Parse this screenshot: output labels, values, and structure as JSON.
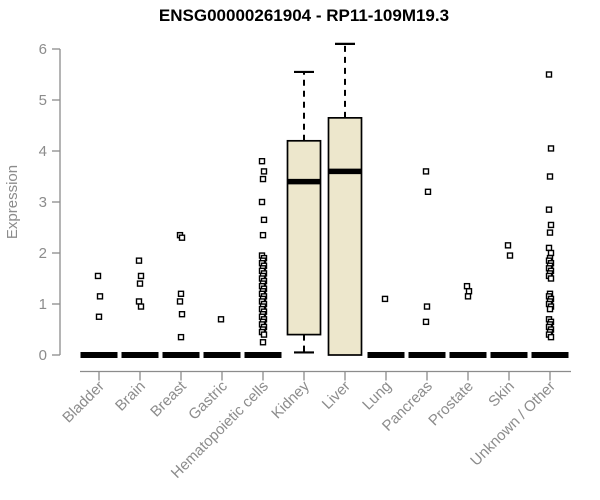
{
  "colors": {
    "background": "#FFFFFF",
    "box_fill": "#EDE7CC",
    "box_stroke": "#000000",
    "median": "#000000",
    "whisker": "#000000",
    "outlier_stroke": "#000000",
    "outlier_fill": "#FFFFFF",
    "axis": "#8C8C8C",
    "text": "#8C8C8C",
    "title": "#000000"
  },
  "chart_data": {
    "type": "boxplot",
    "title": "ENSG00000261904 - RP11-109M19.3",
    "ylabel": "Expression",
    "xlabel": "",
    "ylim": [
      0,
      6
    ],
    "yticks": [
      0,
      1,
      2,
      3,
      4,
      5,
      6
    ],
    "grid": false,
    "legend": null,
    "categories": [
      "Bladder",
      "Brain",
      "Breast",
      "Gastric",
      "Hematopoietic cells",
      "Kidney",
      "Liver",
      "Lung",
      "Pancreas",
      "Prostate",
      "Skin",
      "Unknown / Other"
    ],
    "boxes": [
      {
        "category": "Bladder",
        "q1": 0,
        "median": 0,
        "q3": 0,
        "whisker_low": 0,
        "whisker_high": 0,
        "outliers": [
          1.55,
          1.15,
          0.75
        ]
      },
      {
        "category": "Brain",
        "q1": 0,
        "median": 0,
        "q3": 0,
        "whisker_low": 0,
        "whisker_high": 0,
        "outliers": [
          1.85,
          1.55,
          1.4,
          1.05,
          0.95
        ]
      },
      {
        "category": "Breast",
        "q1": 0,
        "median": 0,
        "q3": 0,
        "whisker_low": 0,
        "whisker_high": 0,
        "outliers": [
          2.35,
          2.3,
          1.2,
          1.05,
          0.8,
          0.35
        ]
      },
      {
        "category": "Gastric",
        "q1": 0,
        "median": 0,
        "q3": 0,
        "whisker_low": 0,
        "whisker_high": 0,
        "outliers": [
          0.7
        ]
      },
      {
        "category": "Hematopoietic cells",
        "q1": 0,
        "median": 0,
        "q3": 0,
        "whisker_low": 0,
        "whisker_high": 0,
        "outliers": [
          3.8,
          3.6,
          3.45,
          3.0,
          2.65,
          2.35,
          1.95,
          1.9,
          1.85,
          1.8,
          1.75,
          1.7,
          1.65,
          1.6,
          1.55,
          1.5,
          1.45,
          1.4,
          1.35,
          1.3,
          1.25,
          1.2,
          1.15,
          1.1,
          1.05,
          1.0,
          0.95,
          0.9,
          0.85,
          0.8,
          0.75,
          0.7,
          0.65,
          0.6,
          0.55,
          0.5,
          0.45,
          0.4,
          0.25
        ]
      },
      {
        "category": "Kidney",
        "q1": 0.4,
        "median": 3.4,
        "q3": 4.2,
        "whisker_low": 0.05,
        "whisker_high": 5.55,
        "outliers": []
      },
      {
        "category": "Liver",
        "q1": 0.0,
        "median": 3.6,
        "q3": 4.65,
        "whisker_low": 0.0,
        "whisker_high": 6.1,
        "outliers": []
      },
      {
        "category": "Lung",
        "q1": 0,
        "median": 0,
        "q3": 0,
        "whisker_low": 0,
        "whisker_high": 0,
        "outliers": [
          1.1
        ]
      },
      {
        "category": "Pancreas",
        "q1": 0,
        "median": 0,
        "q3": 0,
        "whisker_low": 0,
        "whisker_high": 0,
        "outliers": [
          3.6,
          3.2,
          0.95,
          0.65
        ]
      },
      {
        "category": "Prostate",
        "q1": 0,
        "median": 0,
        "q3": 0,
        "whisker_low": 0,
        "whisker_high": 0,
        "outliers": [
          1.35,
          1.25,
          1.15
        ]
      },
      {
        "category": "Skin",
        "q1": 0,
        "median": 0,
        "q3": 0,
        "whisker_low": 0,
        "whisker_high": 0,
        "outliers": [
          2.15,
          1.95
        ]
      },
      {
        "category": "Unknown / Other",
        "q1": 0,
        "median": 0,
        "q3": 0,
        "whisker_low": 0,
        "whisker_high": 0,
        "outliers": [
          5.5,
          4.05,
          3.5,
          2.85,
          2.55,
          2.4,
          2.1,
          2.0,
          1.9,
          1.85,
          1.8,
          1.75,
          1.7,
          1.65,
          1.6,
          1.55,
          1.5,
          1.2,
          1.15,
          1.1,
          1.05,
          1.0,
          0.95,
          0.9,
          0.7,
          0.65,
          0.6,
          0.55,
          0.5,
          0.45,
          0.4,
          0.35
        ]
      }
    ]
  }
}
